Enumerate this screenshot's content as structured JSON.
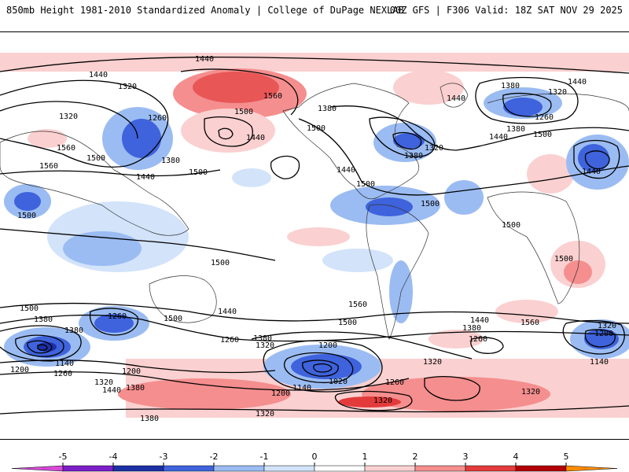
{
  "header": {
    "title": "850mb Height 1981-2010 Standardized Anomaly | College of DuPage NEXLAB",
    "run": "00Z GFS | F306 Valid: 18Z SAT NOV 29 2025"
  },
  "map": {
    "contour_labels": {
      "l1440_top": "1440",
      "l1320_a": "1320",
      "l1320_b": "1320",
      "l1260_a": "1260",
      "l1500_a": "1500",
      "l1560_a": "1560",
      "l1560_b": "1560",
      "l1500_b": "1500",
      "l1380_a": "1380",
      "l1440_a": "1440",
      "l1500_c": "1500",
      "l1500_d": "1500",
      "l1560_c": "1560",
      "l1500_e": "1500",
      "l1440_b": "1440",
      "l1380_b": "1380",
      "l1500_f": "1500",
      "l1440_c": "1440",
      "l1500_g": "1500",
      "l1320_c": "1320",
      "l1380_c": "1380",
      "l1380_d": "1380",
      "l1440_d": "1440",
      "l1320_d": "1320",
      "l1260_b": "1260",
      "l1380_e": "1380",
      "l1440_e": "1440",
      "l1500_h": "1500",
      "l1500_i": "1500",
      "l1440_f": "1440",
      "l1500_j": "1500",
      "l1500_k": "1500",
      "l1500_l": "1500",
      "l1500_m": "1500",
      "l1440_g": "1440",
      "l1380_f": "1380",
      "l1260_c": "1260",
      "l1260_d": "1260",
      "l1440_h": "1440",
      "l1380_g": "1380",
      "l1320_e": "1320",
      "l1200_a": "1200",
      "l1140_a": "1140",
      "l1200_b": "1200",
      "l1260_e": "1260",
      "l1380_h": "1380",
      "l1320_f": "1320",
      "l1320_g": "1320",
      "l1200_c": "1200",
      "l1020": "1020",
      "l1140_b": "1140",
      "l1200_d": "1200",
      "l1260_f": "1260",
      "l1320_h": "1320",
      "l1200_e": "1200",
      "l1320_i": "1320",
      "l1140_c": "1140",
      "l1380_i": "1380",
      "l1380_j": "1380",
      "l1440_i": "1440",
      "l1320_j": "1320",
      "l1320_k": "1320",
      "l1560_d": "1560",
      "l1500_n": "1500",
      "l1200_f": "1200",
      "l1440_j": "1440",
      "l1380_k": "1380"
    }
  },
  "colorbar": {
    "ticks": [
      "-5",
      "-4",
      "-3",
      "-2",
      "-1",
      "0",
      "1",
      "2",
      "3",
      "4",
      "5"
    ],
    "colors": [
      "#d64ad6",
      "#7a1ec8",
      "#1c2fa6",
      "#3f63dc",
      "#9bbcf2",
      "#d2e3fa",
      "#ffffff",
      "#fbd0d0",
      "#f58e8e",
      "#e33b3b",
      "#b30000",
      "#ff8c00",
      "#ffb000"
    ]
  }
}
